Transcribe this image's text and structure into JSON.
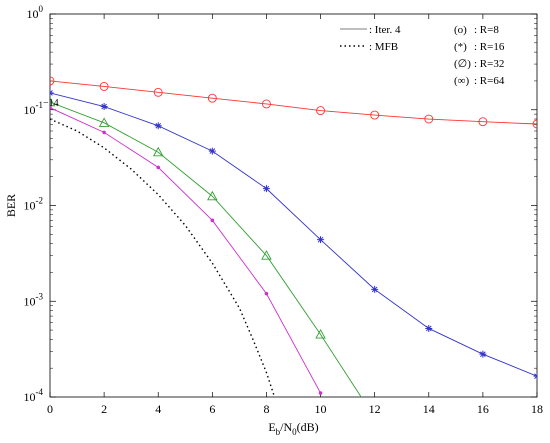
{
  "chart_data": {
    "type": "line",
    "title": "",
    "xlabel": "E_b/N_0(dB)",
    "xlabel_parts": {
      "main": "E",
      "sub1": "b",
      "mid": "/N",
      "sub2": "0",
      "tail": "(dB)"
    },
    "ylabel": "BER",
    "xlim": [
      0,
      18
    ],
    "ylim": [
      0.0001,
      1
    ],
    "yscale": "log",
    "grid": false,
    "x_ticks": [
      0,
      2,
      4,
      6,
      8,
      10,
      12,
      14,
      16,
      18
    ],
    "y_ticks": [
      {
        "value": 1,
        "base": "10",
        "exp": "0"
      },
      {
        "value": 0.1,
        "base": "10",
        "exp": "-1"
      },
      {
        "value": 0.01,
        "base": "10",
        "exp": "-2"
      },
      {
        "value": 0.001,
        "base": "10",
        "exp": "-3"
      },
      {
        "value": 0.0001,
        "base": "10",
        "exp": "-4"
      }
    ],
    "legend": {
      "placement": "top-right",
      "line_entries": [
        {
          "label": ": Iter. 4",
          "style": "solid"
        },
        {
          "label": ": MFB",
          "style": "dotted"
        }
      ],
      "marker_entries": [
        {
          "marker": "(o)",
          "label": ": R=8"
        },
        {
          "marker": "(*)",
          "label": ": R=16"
        },
        {
          "marker": "(∅)",
          "label": ": R=32"
        },
        {
          "marker": "(∞)",
          "label": ": R=64"
        }
      ]
    },
    "series": [
      {
        "color": "#ff3333",
        "marker": "circle",
        "style": "solid",
        "x": [
          0,
          2,
          4,
          6,
          8,
          10,
          12,
          14,
          16,
          18
        ],
        "y": [
          0.2,
          0.175,
          0.152,
          0.132,
          0.115,
          0.098,
          0.088,
          0.08,
          0.075,
          0.071
        ]
      },
      {
        "color": "#3333cc",
        "marker": "star",
        "style": "solid",
        "x": [
          0,
          2,
          4,
          6,
          8,
          10,
          12,
          14,
          16,
          18
        ],
        "y": [
          0.15,
          0.108,
          0.068,
          0.037,
          0.015,
          0.0044,
          0.00133,
          0.00052,
          0.00028,
          0.000165
        ]
      },
      {
        "color": "#33a033",
        "marker": "triangle",
        "style": "solid",
        "x": [
          0,
          2,
          4,
          6,
          8,
          10,
          11.5
        ],
        "y": [
          0.12,
          0.073,
          0.036,
          0.0125,
          0.003,
          0.00045,
          0.0001
        ],
        "marked_points": 6
      },
      {
        "color": "#cc33cc",
        "marker": "dot",
        "style": "solid",
        "x": [
          0,
          2,
          4,
          6,
          8,
          10
        ],
        "y": [
          0.105,
          0.058,
          0.025,
          0.007,
          0.0012,
          0.00011
        ]
      },
      {
        "color": "#000000",
        "marker": "none",
        "style": "dotted",
        "x": [
          0,
          1,
          2,
          3,
          4,
          5,
          6,
          7,
          7.5,
          8,
          8.3
        ],
        "y": [
          0.08,
          0.06,
          0.04,
          0.024,
          0.013,
          0.0062,
          0.0025,
          0.00085,
          0.0004,
          0.00018,
          0.0001
        ]
      }
    ],
    "annotations": [
      {
        "text": "−14",
        "x": 0,
        "y": 0.12,
        "clipped": true
      }
    ]
  }
}
